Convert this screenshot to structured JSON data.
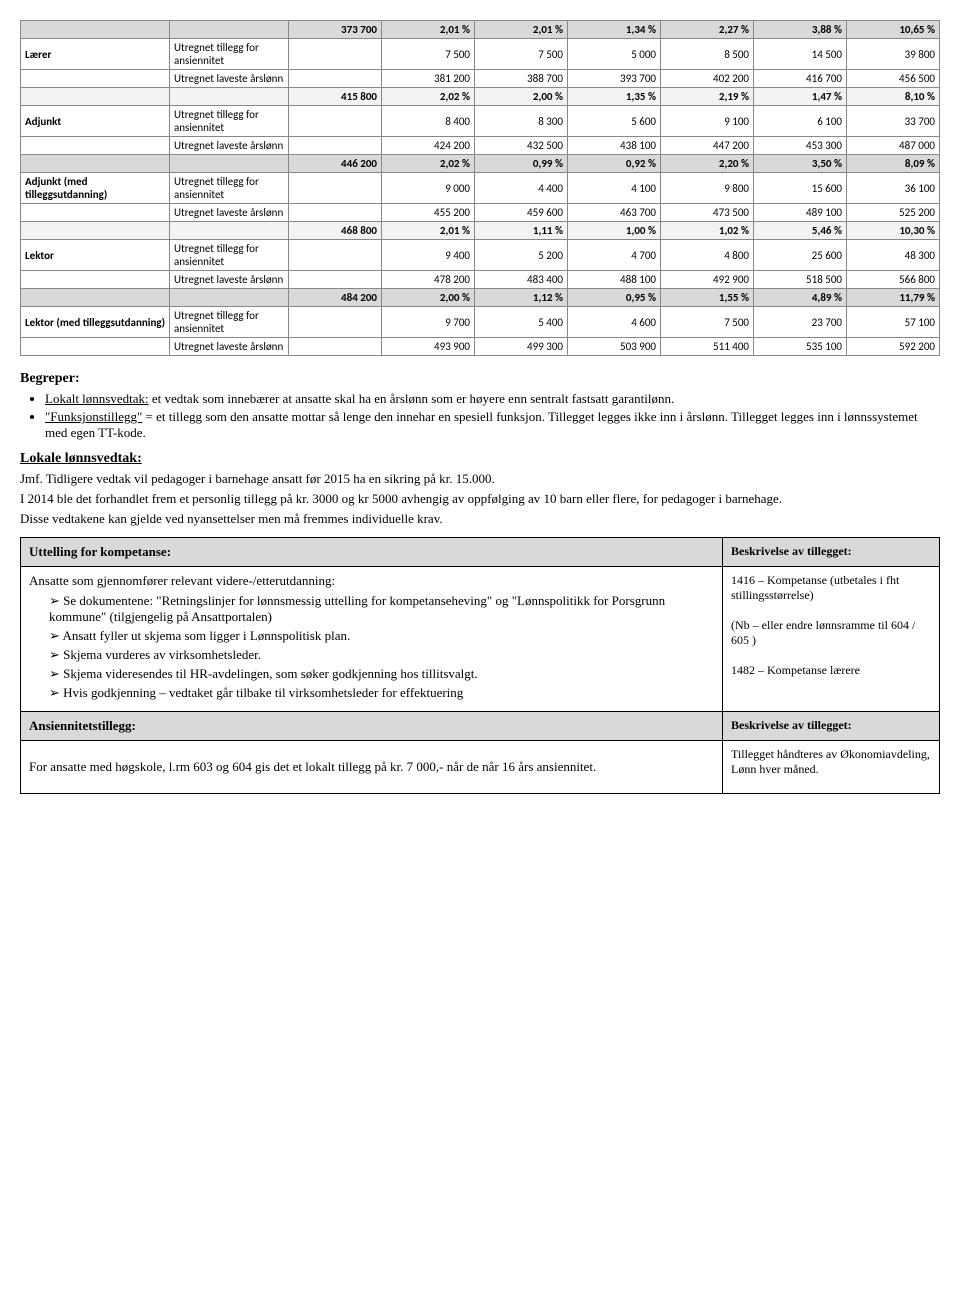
{
  "table": {
    "groups": [
      {
        "category": "Lærer",
        "shade": "hdr-row",
        "header": [
          "",
          "",
          "373 700",
          "2,01 %",
          "2,01 %",
          "1,34 %",
          "2,27 %",
          "3,88 %",
          "10,65 %"
        ],
        "rows": [
          [
            "",
            "Utregnet tillegg for ansiennitet",
            "",
            "7 500",
            "7 500",
            "5 000",
            "8 500",
            "14 500",
            "39 800"
          ],
          [
            "",
            "Utregnet laveste årslønn",
            "",
            "381 200",
            "388 700",
            "393 700",
            "402 200",
            "416 700",
            "456 500"
          ]
        ]
      },
      {
        "category": "Adjunkt",
        "shade": "hdr-row-light",
        "header": [
          "",
          "",
          "415 800",
          "2,02 %",
          "2,00 %",
          "1,35 %",
          "2,19 %",
          "1,47 %",
          "8,10 %"
        ],
        "rows": [
          [
            "",
            "Utregnet tillegg for ansiennitet",
            "",
            "8 400",
            "8 300",
            "5 600",
            "9 100",
            "6 100",
            "33 700"
          ],
          [
            "",
            "Utregnet laveste årslønn",
            "",
            "424 200",
            "432 500",
            "438 100",
            "447 200",
            "453 300",
            "487 000"
          ]
        ]
      },
      {
        "category": "Adjunkt (med tilleggsutdanning)",
        "shade": "hdr-row",
        "header": [
          "",
          "",
          "446 200",
          "2,02 %",
          "0,99 %",
          "0,92 %",
          "2,20 %",
          "3,50 %",
          "8,09 %"
        ],
        "rows": [
          [
            "",
            "Utregnet tillegg for ansiennitet",
            "",
            "9 000",
            "4 400",
            "4 100",
            "9 800",
            "15 600",
            "36 100"
          ],
          [
            "",
            "Utregnet laveste årslønn",
            "",
            "455 200",
            "459 600",
            "463 700",
            "473 500",
            "489 100",
            "525 200"
          ]
        ]
      },
      {
        "category": "Lektor",
        "shade": "hdr-row-light",
        "header": [
          "",
          "",
          "468 800",
          "2,01 %",
          "1,11 %",
          "1,00 %",
          "1,02 %",
          "5,46 %",
          "10,30 %"
        ],
        "rows": [
          [
            "",
            "Utregnet tillegg for ansiennitet",
            "",
            "9 400",
            "5 200",
            "4 700",
            "4 800",
            "25 600",
            "48 300"
          ],
          [
            "",
            "Utregnet laveste årslønn",
            "",
            "478 200",
            "483 400",
            "488 100",
            "492 900",
            "518 500",
            "566 800"
          ]
        ]
      },
      {
        "category": "Lektor (med tilleggsutdanning)",
        "shade": "hdr-row",
        "header": [
          "",
          "",
          "484 200",
          "2,00 %",
          "1,12 %",
          "0,95 %",
          "1,55 %",
          "4,89 %",
          "11,79 %"
        ],
        "rows": [
          [
            "",
            "Utregnet tillegg for ansiennitet",
            "",
            "9 700",
            "5 400",
            "4 600",
            "7 500",
            "23 700",
            "57 100"
          ],
          [
            "",
            "Utregnet laveste årslønn",
            "",
            "493 900",
            "499 300",
            "503 900",
            "511 400",
            "535 100",
            "592 200"
          ]
        ]
      }
    ]
  },
  "begreper": {
    "title": "Begreper:",
    "items": [
      {
        "lead": "Lokalt lønnsvedtak:",
        "text": " et vedtak som innebærer at ansatte skal ha en årslønn som er høyere enn sentralt fastsatt garantilønn."
      },
      {
        "lead": "\"Funksjonstillegg\"",
        "text": " = et tillegg som den ansatte mottar så lenge den innehar en spesiell funksjon. Tillegget legges ikke inn i årslønn. Tillegget legges inn i lønnssystemet med egen TT-kode."
      }
    ]
  },
  "lokale": {
    "title": "Lokale lønnsvedtak:",
    "p1": "Jmf. Tidligere vedtak vil pedagoger i barnehage ansatt før 2015 ha en sikring på kr. 15.000.",
    "p2": "I 2014 ble det forhandlet frem et personlig tillegg på kr. 3000 og kr 5000 avhengig av oppfølging av 10 barn eller flere, for pedagoger i barnehage.",
    "p3": "Disse vedtakene kan gjelde ved nyansettelser men må fremmes individuelle krav."
  },
  "comp": {
    "head1": "Uttelling for kompetanse:",
    "head1r": "Beskrivelse av tillegget:",
    "body1_intro": "Ansatte som gjennomfører relevant videre-/etterutdanning:",
    "body1_items": [
      "Se dokumentene: \"Retningslinjer for lønnsmessig uttelling for kompetanseheving\" og \"Lønnspolitikk for Porsgrunn kommune\" (tilgjengelig på Ansattportalen)",
      "Ansatt fyller ut skjema som ligger i Lønnspolitisk plan.",
      "Skjema vurderes av virksomhetsleder.",
      "Skjema videresendes til HR-avdelingen, som søker godkjenning hos tillitsvalgt.",
      "Hvis godkjenning – vedtaket går tilbake til virksomhetsleder for effektuering"
    ],
    "body1r": "1416 – Kompetanse (utbetales i fht stillingsstørrelse)\n\n(Nb – eller endre lønnsramme til 604 / 605 )\n\n1482 – Kompetanse lærere",
    "head2": "Ansiennitetstillegg:",
    "head2r": "Beskrivelse av tillegget:",
    "body2": "For ansatte med høgskole, l.rm 603  og 604  gis det et lokalt tillegg på kr. 7 000,- når de når 16 års ansiennitet.",
    "body2r": "Tillegget håndteres av Økonomiavdeling, Lønn hver måned."
  }
}
